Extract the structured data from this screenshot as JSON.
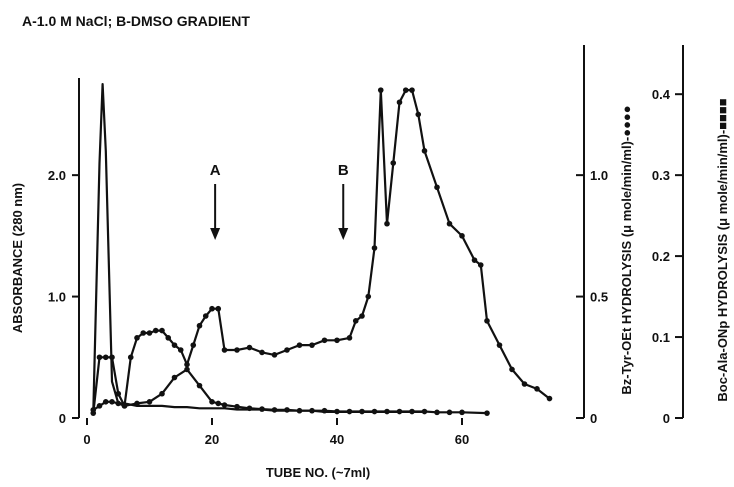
{
  "chart_data": {
    "type": "line",
    "subtitle": "A-1.0 M NaCl;  B-DMSO GRADIENT",
    "xlabel": "TUBE NO. (~7ml)",
    "ylabel": "ABSORBANCE (280 nm)",
    "y2label": "Bz-Tyr-OEt HYDROLYSIS (μ mole/min/ml)-●●●●",
    "y3label": "Boc-Ala-ONp HYDROLYSIS (μ mole/min/ml)-■■■■",
    "xlim": [
      0,
      76
    ],
    "ylim": [
      0,
      2.8
    ],
    "y2lim": [
      0,
      1.4
    ],
    "y3lim": [
      0,
      0.42
    ],
    "x_ticks": [
      "0",
      "20",
      "40",
      "60"
    ],
    "y_ticks": [
      "0",
      "1.0",
      "2.0"
    ],
    "y2_ticks": [
      "0",
      "0.5",
      "1.0"
    ],
    "y3_ticks": [
      "0",
      "0.1",
      "0.2",
      "0.3",
      "0.4"
    ],
    "annotations": [
      {
        "text": "A",
        "x": 20.5
      },
      {
        "text": "B",
        "x": 41
      }
    ],
    "series": [
      {
        "axis": "y",
        "x": [
          1,
          2,
          2.5,
          3,
          4,
          5,
          6,
          8,
          10,
          12,
          14,
          16,
          18,
          20,
          21,
          22,
          24,
          26,
          28,
          30,
          32,
          34,
          36,
          38,
          40,
          42,
          44,
          46,
          48,
          50,
          52,
          54
        ],
        "values": [
          0.05,
          2.1,
          2.75,
          2.2,
          0.3,
          0.12,
          0.12,
          0.1,
          0.1,
          0.1,
          0.09,
          0.09,
          0.08,
          0.08,
          0.08,
          0.08,
          0.07,
          0.07,
          0.07,
          0.06,
          0.06,
          0.06,
          0.06,
          0.05,
          0.05,
          0.05,
          0.05,
          0.05,
          0.05,
          0.05,
          0.05,
          0.05
        ]
      },
      {
        "axis": "y2",
        "x": [
          1,
          2,
          3,
          4,
          5,
          6,
          7,
          8,
          9,
          10,
          11,
          12,
          13,
          14,
          15,
          16,
          17,
          18,
          19,
          20,
          21,
          22,
          24,
          26,
          28,
          30,
          32,
          34,
          36,
          38,
          40,
          42,
          43,
          44,
          45,
          46,
          47,
          48,
          49,
          50,
          51,
          52,
          53,
          54,
          56,
          58,
          60,
          62,
          63,
          64,
          66,
          68,
          70,
          72,
          74
        ],
        "values": [
          0.02,
          0.25,
          0.25,
          0.25,
          0.1,
          0.05,
          0.25,
          0.33,
          0.35,
          0.35,
          0.36,
          0.36,
          0.33,
          0.3,
          0.28,
          0.22,
          0.3,
          0.38,
          0.42,
          0.45,
          0.45,
          0.28,
          0.28,
          0.29,
          0.27,
          0.26,
          0.28,
          0.3,
          0.3,
          0.32,
          0.32,
          0.33,
          0.4,
          0.42,
          0.5,
          0.7,
          1.35,
          0.8,
          1.05,
          1.3,
          1.35,
          1.35,
          1.25,
          1.1,
          0.95,
          0.8,
          0.75,
          0.65,
          0.63,
          0.4,
          0.3,
          0.2,
          0.14,
          0.12,
          0.08
        ]
      },
      {
        "axis": "y3",
        "x": [
          1,
          2,
          3,
          4,
          5,
          6,
          8,
          10,
          12,
          14,
          16,
          18,
          20,
          21,
          22,
          24,
          26,
          28,
          30,
          32,
          34,
          36,
          38,
          40,
          42,
          44,
          46,
          48,
          50,
          52,
          54,
          56,
          58,
          60,
          64
        ],
        "values": [
          0.01,
          0.015,
          0.02,
          0.02,
          0.018,
          0.015,
          0.018,
          0.02,
          0.03,
          0.05,
          0.06,
          0.04,
          0.02,
          0.018,
          0.016,
          0.014,
          0.012,
          0.011,
          0.01,
          0.01,
          0.009,
          0.009,
          0.009,
          0.008,
          0.008,
          0.008,
          0.008,
          0.008,
          0.008,
          0.008,
          0.008,
          0.007,
          0.007,
          0.007,
          0.006
        ]
      }
    ]
  }
}
